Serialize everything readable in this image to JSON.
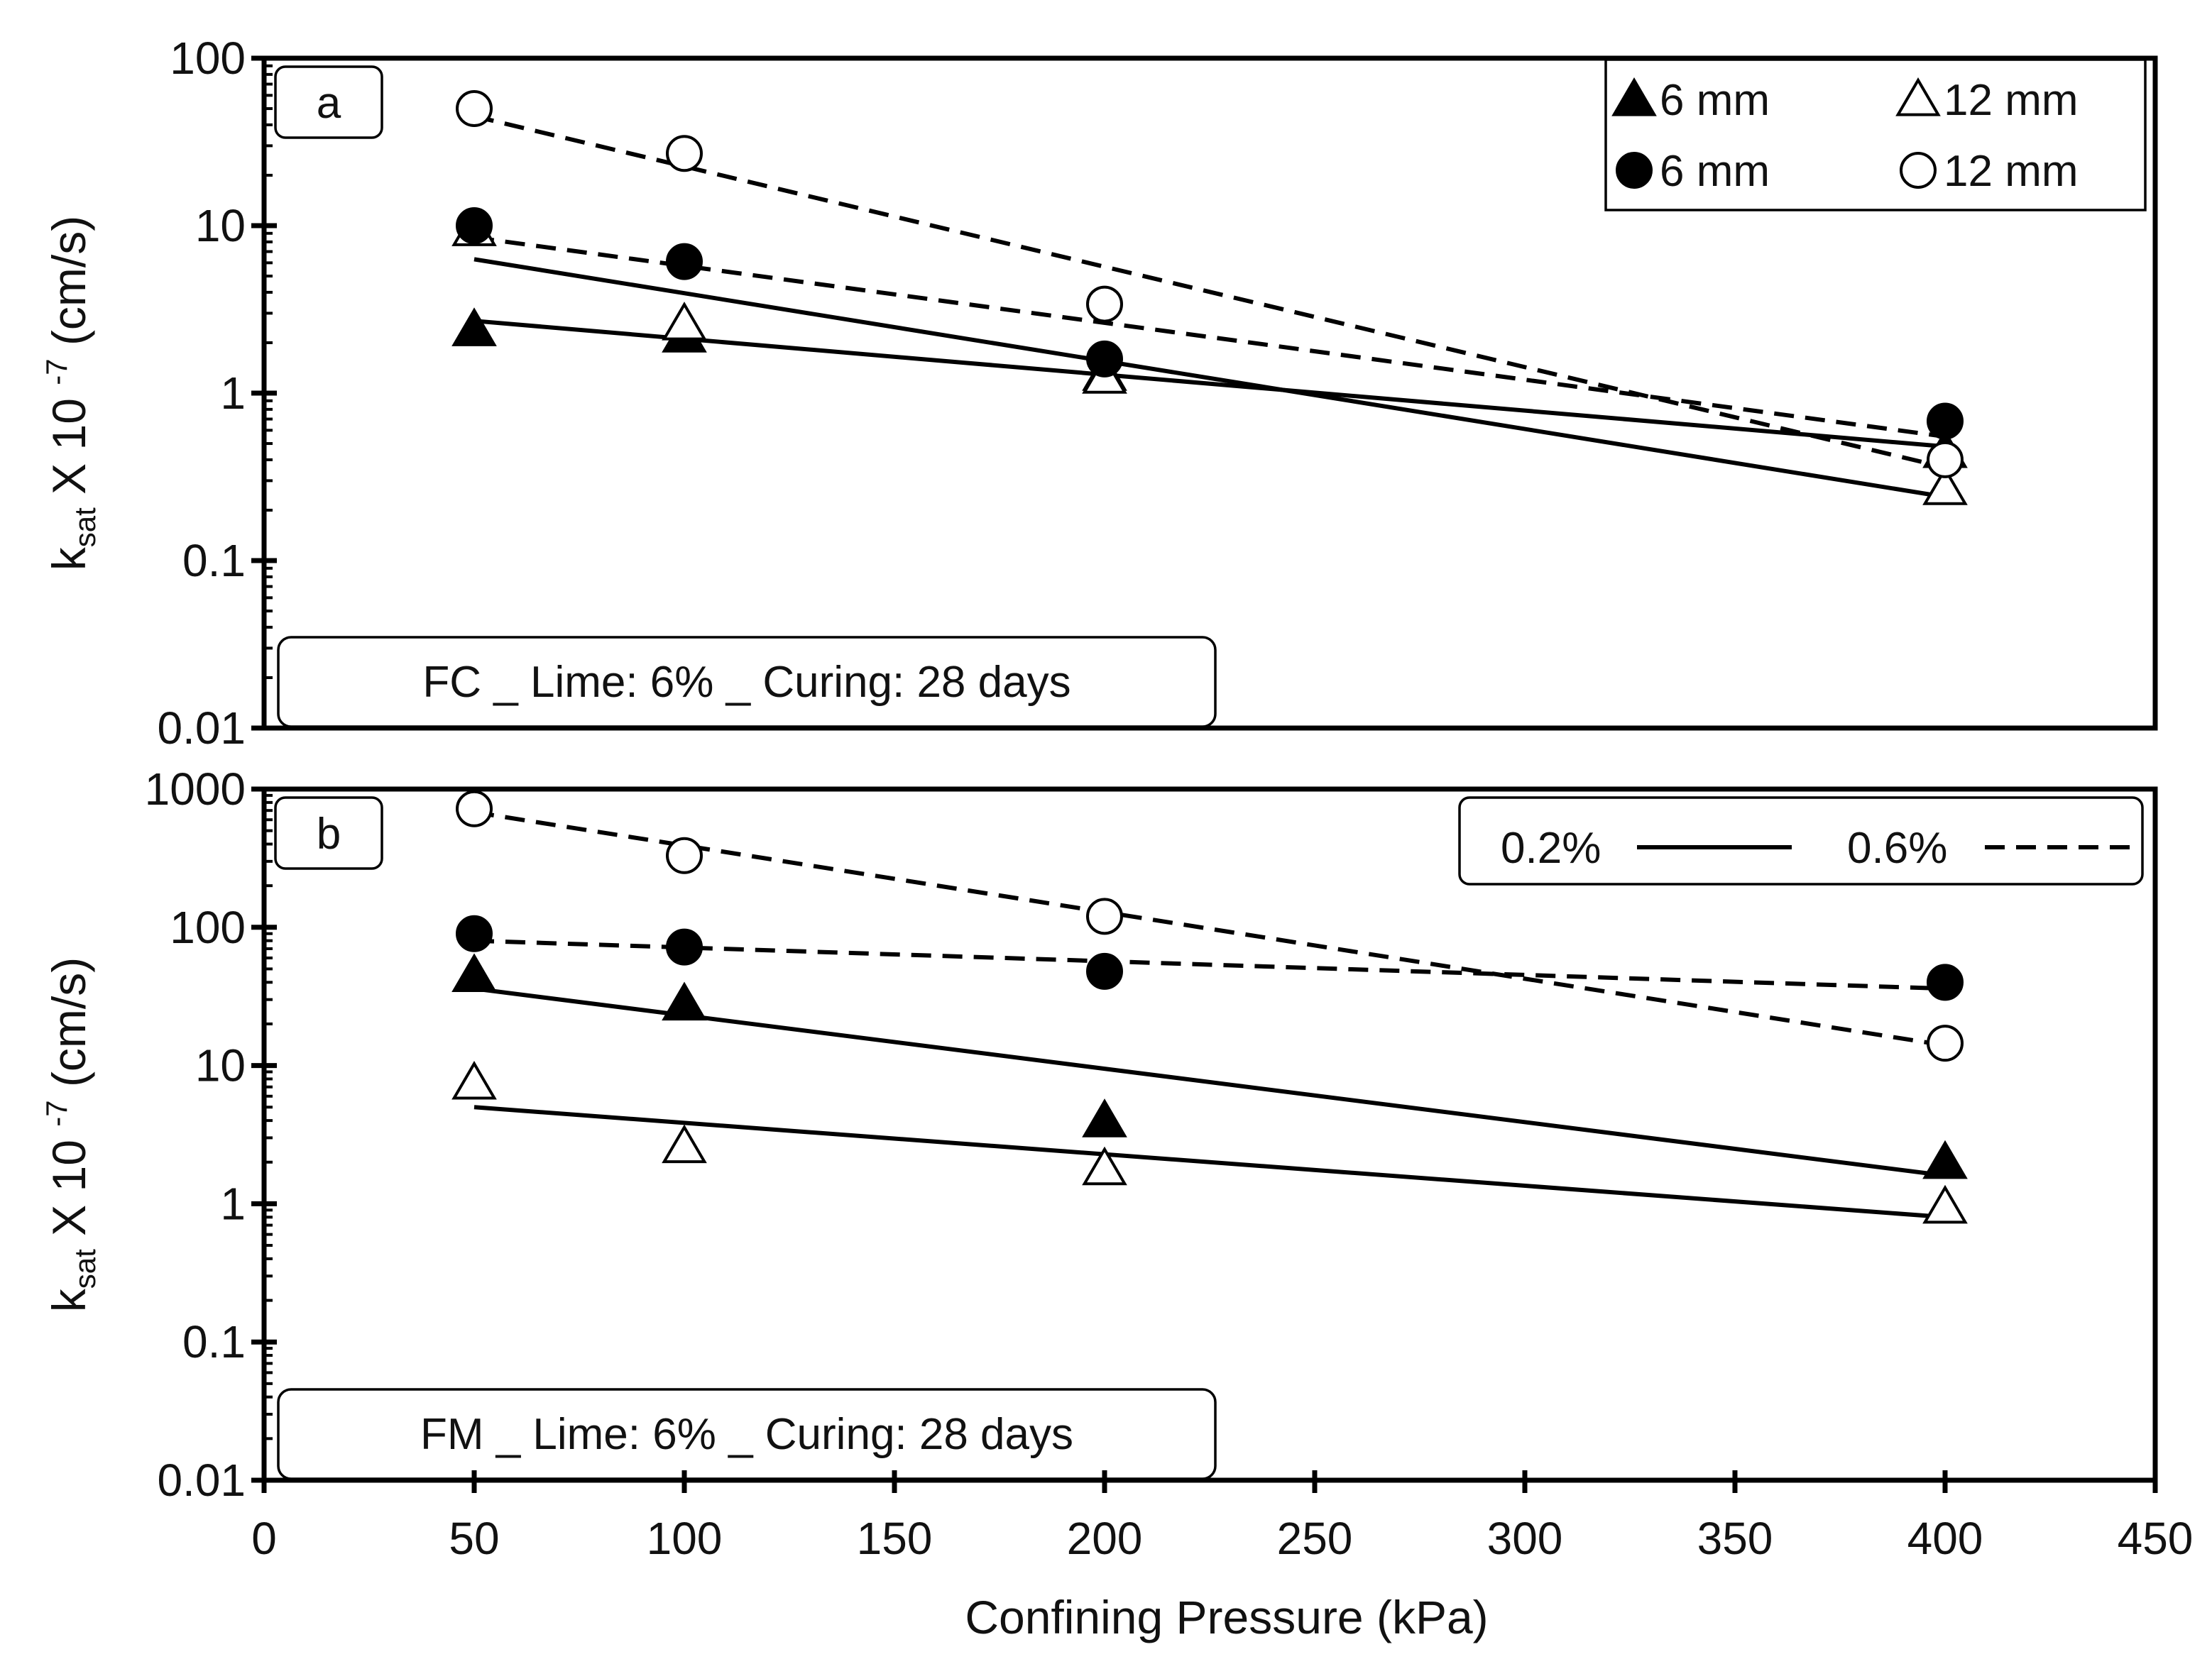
{
  "chart_data": {
    "type": "scatter",
    "x_axis": {
      "label": "Confining Pressure (kPa)",
      "range": [
        0,
        450
      ],
      "ticks": [
        0,
        50,
        100,
        150,
        200,
        250,
        300,
        350,
        400,
        450
      ],
      "tick_labels": [
        "0",
        "50",
        "100",
        "150",
        "200",
        "250",
        "300",
        "350",
        "400",
        "450"
      ]
    },
    "legend": {
      "position": "top-right",
      "markers": [
        {
          "name": "6 mm",
          "marker": "filled-triangle"
        },
        {
          "name": "12 mm",
          "marker": "open-triangle"
        },
        {
          "name": "6 mm",
          "marker": "filled-circle"
        },
        {
          "name": "12 mm",
          "marker": "open-circle"
        }
      ],
      "lines": [
        {
          "name": "0.2%",
          "style": "solid"
        },
        {
          "name": "0.6%",
          "style": "dashed"
        }
      ]
    },
    "panels": [
      {
        "tag": "a",
        "annotation": "FC _ Lime: 6% _ Curing: 28 days",
        "y_axis": {
          "label_main": "k",
          "label_sub": "sat",
          "label_rest": " X 10 ",
          "label_exp": "-7",
          "label_unit": " (cm/s)",
          "scale": "log",
          "range": [
            0.01,
            100
          ],
          "ticks": [
            0.01,
            0.1,
            1,
            10,
            100
          ],
          "tick_labels": [
            "0.01",
            "0.1",
            "1",
            "10",
            "100"
          ]
        },
        "series": [
          {
            "marker": "filled-triangle",
            "line": "solid",
            "x": [
              50,
              100,
              200,
              400
            ],
            "y": [
              2.4,
              2.2,
              1.3,
              0.45
            ],
            "fit": {
              "x": [
                50,
                400
              ],
              "y": [
                2.7,
                0.48
              ]
            }
          },
          {
            "marker": "open-triangle",
            "line": "solid",
            "x": [
              50,
              100,
              200,
              400
            ],
            "y": [
              9.5,
              2.6,
              1.25,
              0.27
            ],
            "fit": {
              "x": [
                50,
                400
              ],
              "y": [
                6.3,
                0.24
              ]
            }
          },
          {
            "marker": "filled-circle",
            "line": "dashed",
            "x": [
              50,
              100,
              200,
              400
            ],
            "y": [
              10,
              6.1,
              1.6,
              0.68
            ],
            "fit": {
              "x": [
                50,
                400
              ],
              "y": [
                8.5,
                0.55
              ]
            }
          },
          {
            "marker": "open-circle",
            "line": "dashed",
            "x": [
              50,
              100,
              200,
              400
            ],
            "y": [
              50,
              27,
              3.4,
              0.4
            ],
            "fit": {
              "x": [
                50,
                400
              ],
              "y": [
                45,
                0.36
              ]
            }
          }
        ]
      },
      {
        "tag": "b",
        "annotation": "FM _ Lime: 6% _ Curing: 28 days",
        "y_axis": {
          "label_main": "k",
          "label_sub": "sat",
          "label_rest": " X 10 ",
          "label_exp": "-7",
          "label_unit": " (cm/s)",
          "scale": "log",
          "range": [
            0.01,
            1000
          ],
          "ticks": [
            0.01,
            0.1,
            1,
            10,
            100,
            1000
          ],
          "tick_labels": [
            "0.01",
            "0.1",
            "1",
            "10",
            "100",
            "1000"
          ]
        },
        "series": [
          {
            "marker": "filled-triangle",
            "line": "solid",
            "x": [
              50,
              100,
              200,
              400
            ],
            "y": [
              45,
              28,
              4,
              2
            ],
            "fit": {
              "x": [
                50,
                400
              ],
              "y": [
                36,
                1.6
              ]
            }
          },
          {
            "marker": "open-triangle",
            "line": "solid",
            "x": [
              50,
              100,
              200,
              400
            ],
            "y": [
              7.5,
              2.6,
              1.8,
              0.95
            ],
            "fit": {
              "x": [
                50,
                400
              ],
              "y": [
                5,
                0.8
              ]
            }
          },
          {
            "marker": "filled-circle",
            "line": "dashed",
            "x": [
              50,
              100,
              200,
              400
            ],
            "y": [
              90,
              72,
              48,
              40
            ],
            "fit": {
              "x": [
                50,
                400
              ],
              "y": [
                80,
                36
              ]
            }
          },
          {
            "marker": "open-circle",
            "line": "dashed",
            "x": [
              50,
              100,
              200,
              400
            ],
            "y": [
              720,
              330,
              120,
              14.5
            ],
            "fit": {
              "x": [
                50,
                400
              ],
              "y": [
                680,
                14
              ]
            }
          }
        ]
      }
    ]
  }
}
